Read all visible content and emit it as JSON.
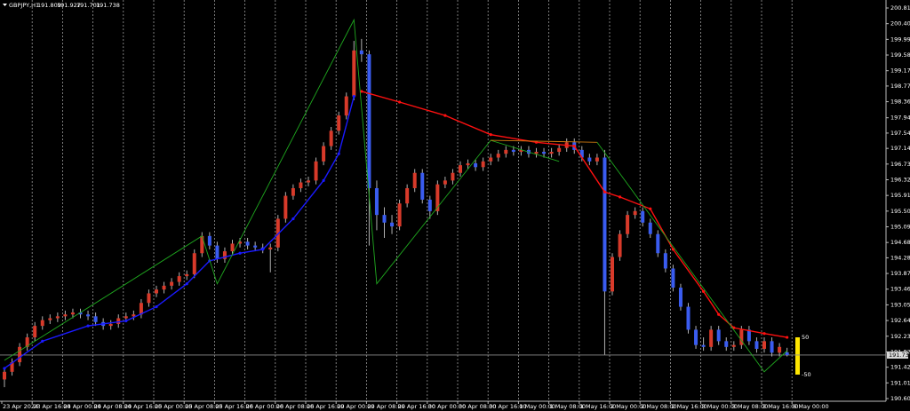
{
  "chart_data": {
    "type": "candlestick",
    "title": "GBPJPY,H1",
    "last_ohlc": [
      191.809,
      191.927,
      191.701,
      191.738
    ],
    "ylim": [
      190.6,
      200.81
    ],
    "yticks": [
      {
        "value": 200.81,
        "label": "200.810"
      },
      {
        "value": 200.4,
        "label": "200.400"
      },
      {
        "value": 199.99,
        "label": "199.990"
      },
      {
        "value": 199.58,
        "label": "199.580"
      },
      {
        "value": 199.17,
        "label": "199.170"
      },
      {
        "value": 198.77,
        "label": "198.770"
      },
      {
        "value": 198.36,
        "label": "198.360"
      },
      {
        "value": 197.94,
        "label": "197.940"
      },
      {
        "value": 197.54,
        "label": "197.540"
      },
      {
        "value": 197.14,
        "label": "197.140"
      },
      {
        "value": 196.73,
        "label": "196.730"
      },
      {
        "value": 196.32,
        "label": "196.320"
      },
      {
        "value": 195.91,
        "label": "195.910"
      },
      {
        "value": 195.5,
        "label": "195.500"
      },
      {
        "value": 195.09,
        "label": "195.090"
      },
      {
        "value": 194.68,
        "label": "194.680"
      },
      {
        "value": 194.28,
        "label": "194.280"
      },
      {
        "value": 193.87,
        "label": "193.870"
      },
      {
        "value": 193.46,
        "label": "193.460"
      },
      {
        "value": 193.05,
        "label": "193.050"
      },
      {
        "value": 192.64,
        "label": "192.640"
      },
      {
        "value": 192.23,
        "label": "192.230"
      },
      {
        "value": 191.82,
        "label": "191.820"
      },
      {
        "value": 191.42,
        "label": "191.420"
      },
      {
        "value": 191.01,
        "label": "191.010"
      },
      {
        "value": 190.6,
        "label": "190.600"
      }
    ],
    "xticks": [
      {
        "value": 0,
        "label": "23 Apr 2024"
      },
      {
        "value": 4,
        "label": "23 Apr 16:00"
      },
      {
        "value": 8,
        "label": "24 Apr 00:00"
      },
      {
        "value": 12,
        "label": "24 Apr 08:00"
      },
      {
        "value": 16,
        "label": "24 Apr 16:00"
      },
      {
        "value": 20,
        "label": "25 Apr 00:00"
      },
      {
        "value": 24,
        "label": "25 Apr 08:00"
      },
      {
        "value": 28,
        "label": "25 Apr 16:00"
      },
      {
        "value": 32,
        "label": "26 Apr 00:00"
      },
      {
        "value": 36,
        "label": "26 Apr 08:00"
      },
      {
        "value": 40,
        "label": "26 Apr 16:00"
      },
      {
        "value": 44,
        "label": "29 Apr 00:00"
      },
      {
        "value": 48,
        "label": "29 Apr 08:00"
      },
      {
        "value": 52,
        "label": "29 Apr 16:00"
      },
      {
        "value": 56,
        "label": "30 Apr 00:00"
      },
      {
        "value": 60,
        "label": "30 Apr 08:00"
      },
      {
        "value": 64,
        "label": "30 Apr 16:00"
      },
      {
        "value": 68,
        "label": "1 May 00:00"
      },
      {
        "value": 72,
        "label": "1 May 08:00"
      },
      {
        "value": 76,
        "label": "1 May 16:00"
      },
      {
        "value": 80,
        "label": "2 May 00:00"
      },
      {
        "value": 84,
        "label": "2 May 08:00"
      },
      {
        "value": 88,
        "label": "2 May 16:00"
      },
      {
        "value": 92,
        "label": "3 May 00:00"
      },
      {
        "value": 96,
        "label": "3 May 08:00"
      },
      {
        "value": 100,
        "label": "3 May 16:00"
      },
      {
        "value": 104,
        "label": "6 May 00:00"
      }
    ],
    "grid": true,
    "levels": [
      50,
      -50
    ],
    "series": [
      {
        "color_up": "#d83a2a",
        "color_down": "#3a5cf0",
        "values": [
          [
            191.1,
            191.4,
            190.9,
            191.3
          ],
          [
            191.3,
            191.65,
            191.2,
            191.55
          ],
          [
            191.55,
            192.05,
            191.45,
            191.95
          ],
          [
            191.95,
            192.3,
            191.85,
            192.2
          ],
          [
            192.2,
            192.6,
            192.1,
            192.5
          ],
          [
            192.5,
            192.75,
            192.4,
            192.65
          ],
          [
            192.65,
            192.8,
            192.55,
            192.7
          ],
          [
            192.7,
            192.85,
            192.6,
            192.75
          ],
          [
            192.75,
            192.9,
            192.65,
            192.8
          ],
          [
            192.8,
            192.95,
            192.7,
            192.85
          ],
          [
            192.85,
            192.95,
            192.7,
            192.8
          ],
          [
            192.8,
            192.9,
            192.65,
            192.75
          ],
          [
            192.75,
            192.85,
            192.5,
            192.6
          ],
          [
            192.6,
            192.7,
            192.4,
            192.5
          ],
          [
            192.5,
            192.65,
            192.4,
            192.55
          ],
          [
            192.55,
            192.8,
            192.45,
            192.7
          ],
          [
            192.7,
            192.85,
            192.6,
            192.75
          ],
          [
            192.75,
            192.9,
            192.65,
            192.8
          ],
          [
            192.8,
            193.2,
            192.7,
            193.1
          ],
          [
            193.1,
            193.45,
            193.0,
            193.35
          ],
          [
            193.35,
            193.55,
            193.25,
            193.45
          ],
          [
            193.45,
            193.65,
            193.35,
            193.55
          ],
          [
            193.55,
            193.75,
            193.45,
            193.65
          ],
          [
            193.65,
            193.9,
            193.55,
            193.8
          ],
          [
            193.8,
            193.95,
            193.7,
            193.85
          ],
          [
            193.85,
            194.5,
            193.75,
            194.4
          ],
          [
            194.4,
            194.95,
            194.3,
            194.85
          ],
          [
            194.85,
            194.95,
            194.5,
            194.6
          ],
          [
            194.6,
            194.7,
            194.15,
            194.25
          ],
          [
            194.25,
            194.55,
            194.15,
            194.45
          ],
          [
            194.45,
            194.75,
            194.35,
            194.65
          ],
          [
            194.65,
            194.8,
            194.55,
            194.7
          ],
          [
            194.7,
            194.8,
            194.5,
            194.6
          ],
          [
            194.6,
            194.7,
            194.45,
            194.55
          ],
          [
            194.55,
            194.65,
            194.4,
            194.5
          ],
          [
            194.5,
            194.65,
            193.9,
            194.55
          ],
          [
            194.55,
            195.4,
            194.45,
            195.3
          ],
          [
            195.3,
            196.0,
            195.2,
            195.9
          ],
          [
            195.9,
            196.2,
            195.8,
            196.1
          ],
          [
            196.1,
            196.35,
            196.0,
            196.25
          ],
          [
            196.25,
            196.4,
            196.15,
            196.3
          ],
          [
            196.3,
            196.9,
            196.2,
            196.8
          ],
          [
            196.8,
            197.3,
            196.7,
            197.2
          ],
          [
            197.2,
            197.7,
            197.1,
            197.6
          ],
          [
            197.6,
            198.1,
            197.5,
            198.0
          ],
          [
            198.0,
            198.6,
            197.9,
            198.5
          ],
          [
            198.5,
            199.95,
            198.4,
            199.7
          ],
          [
            199.7,
            200.0,
            199.4,
            199.6
          ],
          [
            199.6,
            199.7,
            194.6,
            196.1
          ],
          [
            196.1,
            196.3,
            195.0,
            195.4
          ],
          [
            195.4,
            195.6,
            194.8,
            195.2
          ],
          [
            195.2,
            195.4,
            194.9,
            195.1
          ],
          [
            195.1,
            195.8,
            195.0,
            195.7
          ],
          [
            195.7,
            196.2,
            195.6,
            196.1
          ],
          [
            196.1,
            196.6,
            196.0,
            196.5
          ],
          [
            196.5,
            196.6,
            195.7,
            195.8
          ],
          [
            195.8,
            195.9,
            195.3,
            195.5
          ],
          [
            195.5,
            196.3,
            195.4,
            196.2
          ],
          [
            196.2,
            196.4,
            196.1,
            196.3
          ],
          [
            196.3,
            196.6,
            196.2,
            196.5
          ],
          [
            196.5,
            196.8,
            196.4,
            196.7
          ],
          [
            196.7,
            196.85,
            196.6,
            196.75
          ],
          [
            196.75,
            196.85,
            196.55,
            196.65
          ],
          [
            196.65,
            196.9,
            196.55,
            196.8
          ],
          [
            196.8,
            197.0,
            196.7,
            196.9
          ],
          [
            196.9,
            197.1,
            196.8,
            197.0
          ],
          [
            197.0,
            197.2,
            196.9,
            197.1
          ],
          [
            197.1,
            197.2,
            196.95,
            197.05
          ],
          [
            197.05,
            197.2,
            196.95,
            197.1
          ],
          [
            197.1,
            197.2,
            196.9,
            197.0
          ],
          [
            197.0,
            197.15,
            196.9,
            197.05
          ],
          [
            197.05,
            197.15,
            196.9,
            197.0
          ],
          [
            197.0,
            197.15,
            196.9,
            197.05
          ],
          [
            197.05,
            197.25,
            196.95,
            197.15
          ],
          [
            197.15,
            197.4,
            197.05,
            197.3
          ],
          [
            197.3,
            197.4,
            197.0,
            197.1
          ],
          [
            197.1,
            197.2,
            196.8,
            196.9
          ],
          [
            196.9,
            197.0,
            196.7,
            196.8
          ],
          [
            196.8,
            197.0,
            196.7,
            196.9
          ],
          [
            196.9,
            197.1,
            191.75,
            193.4
          ],
          [
            193.4,
            194.4,
            193.3,
            194.3
          ],
          [
            194.3,
            195.0,
            194.2,
            194.9
          ],
          [
            194.9,
            195.5,
            194.8,
            195.4
          ],
          [
            195.4,
            195.6,
            195.3,
            195.5
          ],
          [
            195.5,
            195.6,
            195.1,
            195.2
          ],
          [
            195.2,
            195.3,
            194.8,
            194.9
          ],
          [
            194.9,
            195.0,
            194.3,
            194.4
          ],
          [
            194.4,
            194.5,
            193.9,
            194.0
          ],
          [
            194.0,
            194.1,
            193.4,
            193.5
          ],
          [
            193.5,
            193.6,
            192.9,
            193.0
          ],
          [
            193.0,
            193.1,
            192.3,
            192.4
          ],
          [
            192.4,
            192.5,
            191.9,
            192.0
          ],
          [
            192.0,
            192.2,
            191.85,
            191.95
          ],
          [
            191.95,
            192.5,
            191.85,
            192.4
          ],
          [
            192.4,
            192.5,
            192.0,
            192.1
          ],
          [
            192.1,
            192.2,
            191.85,
            191.95
          ],
          [
            191.95,
            192.1,
            191.85,
            192.0
          ],
          [
            192.0,
            192.5,
            191.9,
            192.4
          ],
          [
            192.4,
            192.5,
            192.0,
            192.1
          ],
          [
            192.1,
            192.2,
            191.8,
            191.9
          ],
          [
            191.9,
            192.2,
            191.8,
            192.1
          ],
          [
            192.1,
            192.2,
            191.7,
            191.8
          ],
          [
            191.8,
            192.05,
            191.7,
            191.95
          ],
          [
            191.809,
            191.927,
            191.701,
            191.738
          ]
        ]
      },
      {
        "type": "line",
        "color": "#ff1010",
        "marker": true,
        "x": [
          47,
          52,
          58,
          64,
          70,
          75,
          79,
          81,
          85,
          88,
          92,
          94,
          96,
          100,
          103
        ],
        "values": [
          198.63,
          198.35,
          198.0,
          197.5,
          197.3,
          197.2,
          196.0,
          195.87,
          195.56,
          194.5,
          193.4,
          192.8,
          192.45,
          192.3,
          192.2
        ]
      },
      {
        "type": "line",
        "color": "#1a1aff",
        "marker": true,
        "x": [
          0,
          5,
          11,
          16,
          20,
          24,
          27,
          31,
          34,
          38,
          42,
          44,
          46
        ],
        "values": [
          191.39,
          192.1,
          192.5,
          192.63,
          193.0,
          193.6,
          194.2,
          194.4,
          194.5,
          195.3,
          196.3,
          197.0,
          198.5
        ]
      },
      {
        "type": "line",
        "color": "#1fa81f",
        "marker": false,
        "x": [
          0,
          26,
          28,
          46,
          49,
          64,
          73
        ],
        "values": [
          191.6,
          194.85,
          193.6,
          200.5,
          193.6,
          197.35,
          196.8
        ]
      },
      {
        "type": "line",
        "color": "#d07a10",
        "marker": false,
        "x": [
          64,
          78
        ],
        "values": [
          197.35,
          197.3
        ]
      },
      {
        "type": "line",
        "color": "#1fa81f",
        "marker": false,
        "x": [
          78,
          100,
          103
        ],
        "values": [
          197.3,
          191.3,
          191.85
        ]
      }
    ]
  }
}
